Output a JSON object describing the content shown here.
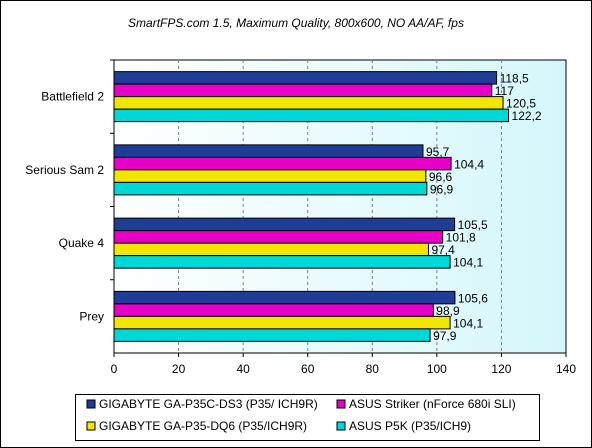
{
  "chart_data": {
    "type": "bar",
    "orientation": "horizontal",
    "title": "SmartFPS.com 1.5, Maximum Quality, 800x600, NO AA/AF, fps",
    "xlabel": "",
    "ylabel": "",
    "xlim": [
      0,
      140
    ],
    "ticks": [
      0,
      20,
      40,
      60,
      80,
      100,
      120,
      140
    ],
    "grid": true,
    "legend_position": "bottom",
    "categories": [
      "Battlefield 2",
      "Serious Sam 2",
      "Quake 4",
      "Prey"
    ],
    "series": [
      {
        "name": "GIGABYTE GA-P35C-DS3 (P35/ ICH9R)",
        "color": "#1f3c96",
        "values": [
          118.5,
          95.7,
          105.5,
          105.6
        ],
        "labels": [
          "118,5",
          "95,7",
          "105,5",
          "105,6"
        ]
      },
      {
        "name": "ASUS Striker (nForce 680i SLI)",
        "color": "#e600c8",
        "values": [
          117,
          104.4,
          101.8,
          98.9
        ],
        "labels": [
          "117",
          "104,4",
          "101,8",
          "98,9"
        ]
      },
      {
        "name": "GIGABYTE GA-P35-DQ6 (P35/ICH9R)",
        "color": "#f2e600",
        "values": [
          120.5,
          96.6,
          97.4,
          104.1
        ],
        "labels": [
          "120,5",
          "96,6",
          "97,4",
          "104,1"
        ]
      },
      {
        "name": "ASUS P5K (P35/ICH9)",
        "color": "#00d8d8",
        "values": [
          122.2,
          96.9,
          104.1,
          97.9
        ],
        "labels": [
          "122,2",
          "96,9",
          "104,1",
          "97,9"
        ]
      }
    ]
  },
  "style": {
    "plot_gradient_start": "#ffffff",
    "plot_gradient_end": "#d4f7fb",
    "grid_color": "#808080"
  }
}
